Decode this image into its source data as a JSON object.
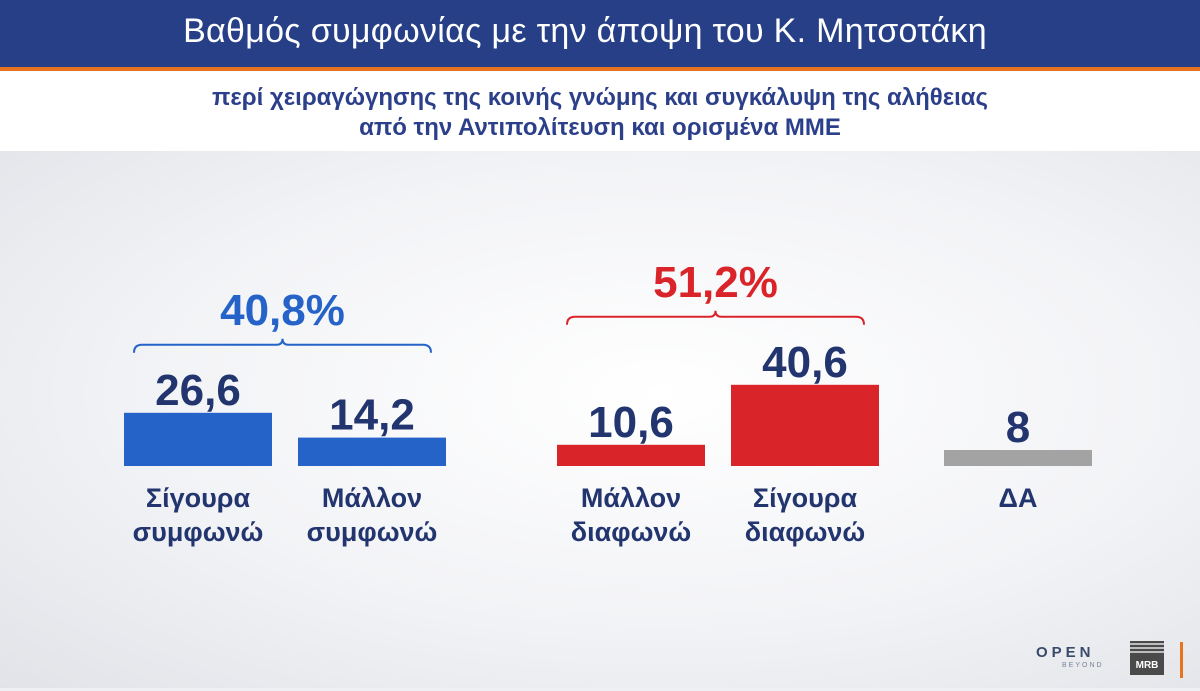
{
  "header": {
    "title": "Βαθμός συμφωνίας με την άποψη του Κ. Μητσοτάκη",
    "subtitle_line1": "περί χειραγώγησης της κοινής γνώμης και συγκάλυψη της αλήθειας",
    "subtitle_line2": "από την Αντιπολίτευση και ορισμένα ΜΜΕ"
  },
  "chart_data": {
    "type": "bar",
    "title": "Βαθμός συμφωνίας με την άποψη του Κ. Μητσοτάκη",
    "categories": [
      "Σίγουρα συμφωνώ",
      "Μάλλον συμφωνώ",
      "Μάλλον διαφωνώ",
      "Σίγουρα διαφωνώ",
      "ΔΑ"
    ],
    "values": [
      26.6,
      14.2,
      10.6,
      40.6,
      8
    ],
    "value_labels": [
      "26,6",
      "14,2",
      "10,6",
      "40,6",
      "8"
    ],
    "category_lines": [
      [
        "Σίγουρα",
        "συμφωνώ"
      ],
      [
        "Μάλλον",
        "συμφωνώ"
      ],
      [
        "Μάλλον",
        "διαφωνώ"
      ],
      [
        "Σίγουρα",
        "διαφωνώ"
      ],
      [
        "ΔΑ"
      ]
    ],
    "colors": [
      "#2563c9",
      "#2563c9",
      "#d9242a",
      "#d9242a",
      "#a3a3a3"
    ],
    "groups": [
      {
        "label": "40,8%",
        "value": 40.8,
        "members": [
          0,
          1
        ],
        "color": "#2563c9"
      },
      {
        "label": "51,2%",
        "value": 51.2,
        "members": [
          2,
          3
        ],
        "color": "#d9242a"
      }
    ],
    "label_color": "#23356e",
    "grid": false,
    "legend": "none"
  },
  "logos": {
    "open": "OPEN",
    "beyond": "BEYOND",
    "mrb": "MRB"
  }
}
